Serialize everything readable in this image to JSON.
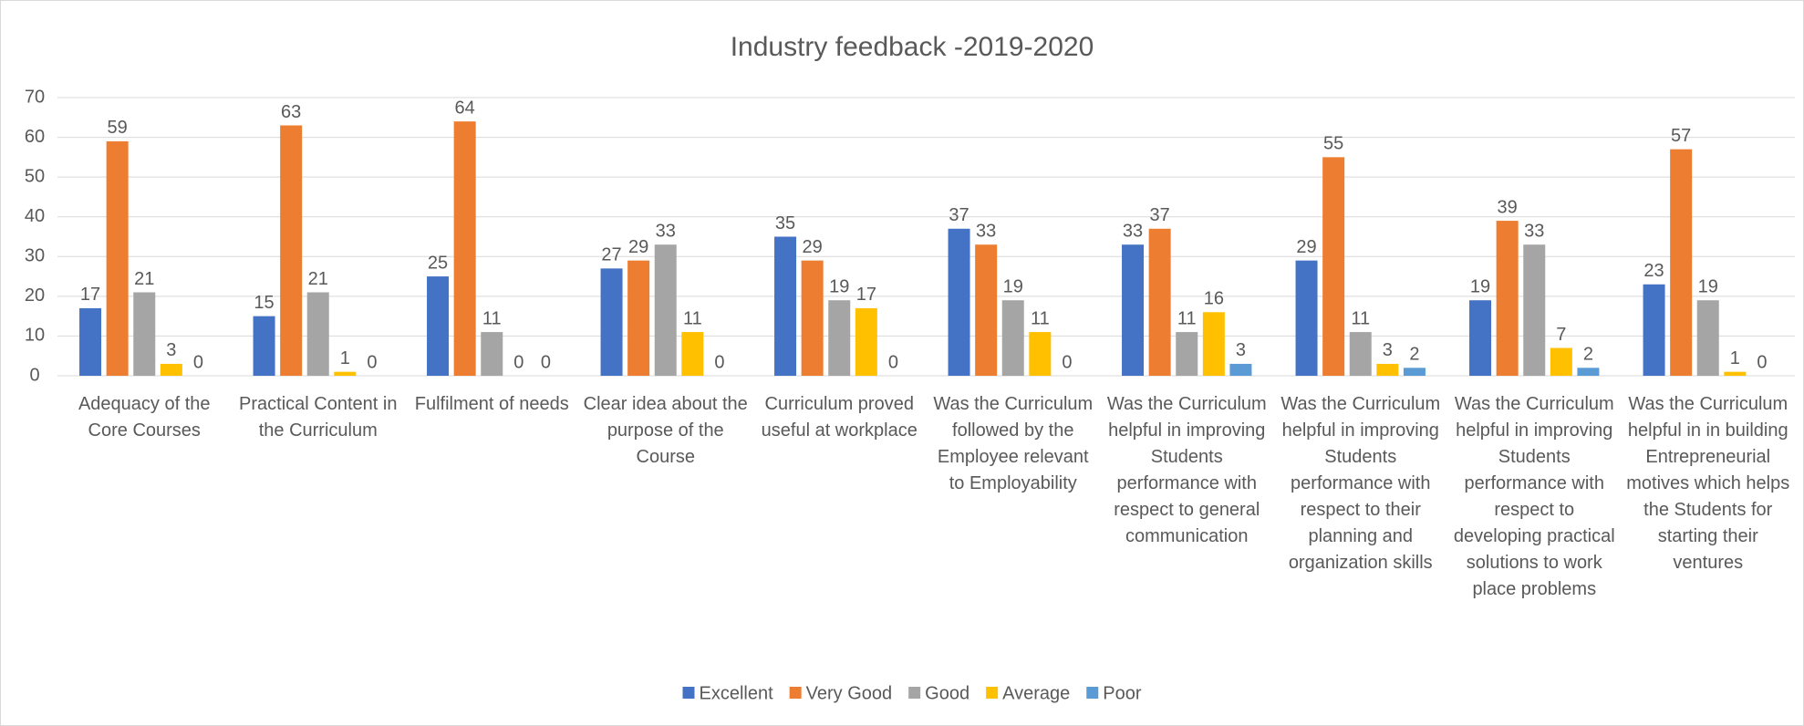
{
  "chart_data": {
    "type": "bar",
    "title": "Industry feedback -2019-2020",
    "categories": [
      "Adequacy of the Core Courses",
      "Practical Content in the Curriculum",
      "Fulfilment of needs",
      "Clear idea about the purpose of the Course",
      "Curriculum proved useful at workplace",
      "Was the Curriculum followed by the Employee relevant to Employability",
      "Was the Curriculum helpful in improving Students performance with respect to general communication",
      "Was the Curriculum helpful in improving Students performance with respect to their planning and organization skills",
      "Was the Curriculum helpful in improving Students performance with respect to developing practical solutions to work place problems",
      "Was the Curriculum helpful in in building Entrepreneurial motives which helps the Students for starting their ventures"
    ],
    "series": [
      {
        "name": "Excellent",
        "color": "#4472c4",
        "values": [
          17,
          15,
          25,
          27,
          35,
          37,
          33,
          29,
          19,
          23
        ]
      },
      {
        "name": "Very Good",
        "color": "#ed7d31",
        "values": [
          59,
          63,
          64,
          29,
          29,
          33,
          37,
          55,
          39,
          57
        ]
      },
      {
        "name": "Good",
        "color": "#a5a5a5",
        "values": [
          21,
          21,
          11,
          33,
          19,
          19,
          11,
          11,
          33,
          19
        ]
      },
      {
        "name": "Average",
        "color": "#ffc000",
        "values": [
          3,
          1,
          0,
          11,
          17,
          11,
          16,
          3,
          7,
          1
        ]
      },
      {
        "name": "Poor",
        "color": "#5b9bd5",
        "values": [
          0,
          0,
          0,
          0,
          0,
          0,
          3,
          2,
          2,
          0
        ]
      }
    ],
    "ylim": [
      0,
      70
    ],
    "yticks": [
      0,
      10,
      20,
      30,
      40,
      50,
      60,
      70
    ],
    "grid": true,
    "legend": "bottom"
  }
}
